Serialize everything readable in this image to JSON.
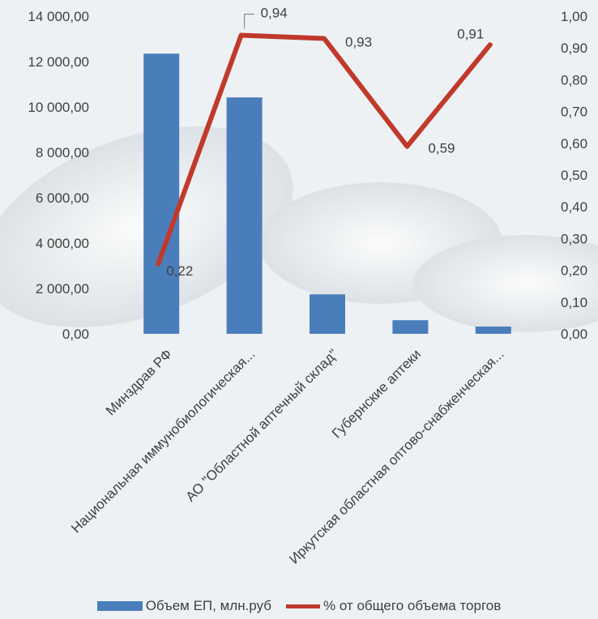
{
  "chart_data": {
    "type": "bar+line",
    "title": "",
    "categories": [
      "Минздрав РФ",
      "Национальная иммунобиологическая...",
      "АО \"Областной аптечный склад\"",
      "Губернские аптеки",
      "Иркутская областная оптово-снабженческая..."
    ],
    "series": [
      {
        "name": "Объем ЕП, млн.руб",
        "type": "bar",
        "axis": "left",
        "color": "#4a7ebb",
        "values": [
          12350,
          10420,
          1740,
          600,
          320
        ]
      },
      {
        "name": "% от общего объема торгов",
        "type": "line",
        "axis": "right",
        "color": "#c0392b",
        "values": [
          0.22,
          0.94,
          0.93,
          0.59,
          0.91
        ],
        "data_labels": [
          "0,22",
          "0,94",
          "0,93",
          "0,59",
          "0,91"
        ]
      }
    ],
    "y_left": {
      "range": [
        0,
        14000
      ],
      "tick_labels": [
        "0,00",
        "2 000,00",
        "4 000,00",
        "6 000,00",
        "8 000,00",
        "10 000,00",
        "12 000,00",
        "14 000,00"
      ]
    },
    "y_right": {
      "range": [
        0,
        1.0
      ],
      "tick_labels": [
        "0,00",
        "0,10",
        "0,20",
        "0,30",
        "0,40",
        "0,50",
        "0,60",
        "0,70",
        "0,80",
        "0,90",
        "1,00"
      ]
    },
    "grid": false,
    "legend_position": "bottom"
  },
  "legend": {
    "bar_label": "Объем ЕП, млн.руб",
    "line_label": "% от общего объема торгов",
    "bar_color": "#4a7ebb",
    "line_color": "#c0392b"
  }
}
